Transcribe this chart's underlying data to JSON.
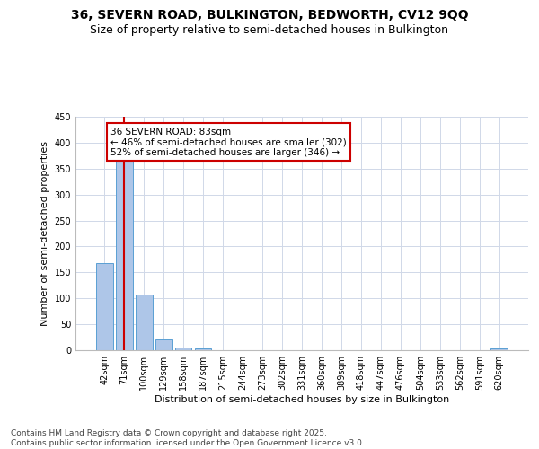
{
  "title1": "36, SEVERN ROAD, BULKINGTON, BEDWORTH, CV12 9QQ",
  "title2": "Size of property relative to semi-detached houses in Bulkington",
  "xlabel": "Distribution of semi-detached houses by size in Bulkington",
  "ylabel": "Number of semi-detached properties",
  "categories": [
    "42sqm",
    "71sqm",
    "100sqm",
    "129sqm",
    "158sqm",
    "187sqm",
    "215sqm",
    "244sqm",
    "273sqm",
    "302sqm",
    "331sqm",
    "360sqm",
    "389sqm",
    "418sqm",
    "447sqm",
    "476sqm",
    "504sqm",
    "533sqm",
    "562sqm",
    "591sqm",
    "620sqm"
  ],
  "values": [
    168,
    372,
    107,
    20,
    6,
    3,
    0,
    0,
    0,
    0,
    0,
    0,
    0,
    0,
    0,
    0,
    0,
    0,
    0,
    0,
    4
  ],
  "bar_color": "#aec6e8",
  "bar_edge_color": "#5a9fd4",
  "vline_x_index": 1,
  "vline_color": "#cc0000",
  "annotation_text": "36 SEVERN ROAD: 83sqm\n← 46% of semi-detached houses are smaller (302)\n52% of semi-detached houses are larger (346) →",
  "annotation_box_color": "#ffffff",
  "annotation_box_edge": "#cc0000",
  "ylim": [
    0,
    450
  ],
  "yticks": [
    0,
    50,
    100,
    150,
    200,
    250,
    300,
    350,
    400,
    450
  ],
  "background_color": "#ffffff",
  "grid_color": "#d0d8e8",
  "footer": "Contains HM Land Registry data © Crown copyright and database right 2025.\nContains public sector information licensed under the Open Government Licence v3.0.",
  "title1_fontsize": 10,
  "title2_fontsize": 9,
  "axis_label_fontsize": 8,
  "tick_fontsize": 7,
  "annotation_fontsize": 7.5,
  "footer_fontsize": 6.5
}
